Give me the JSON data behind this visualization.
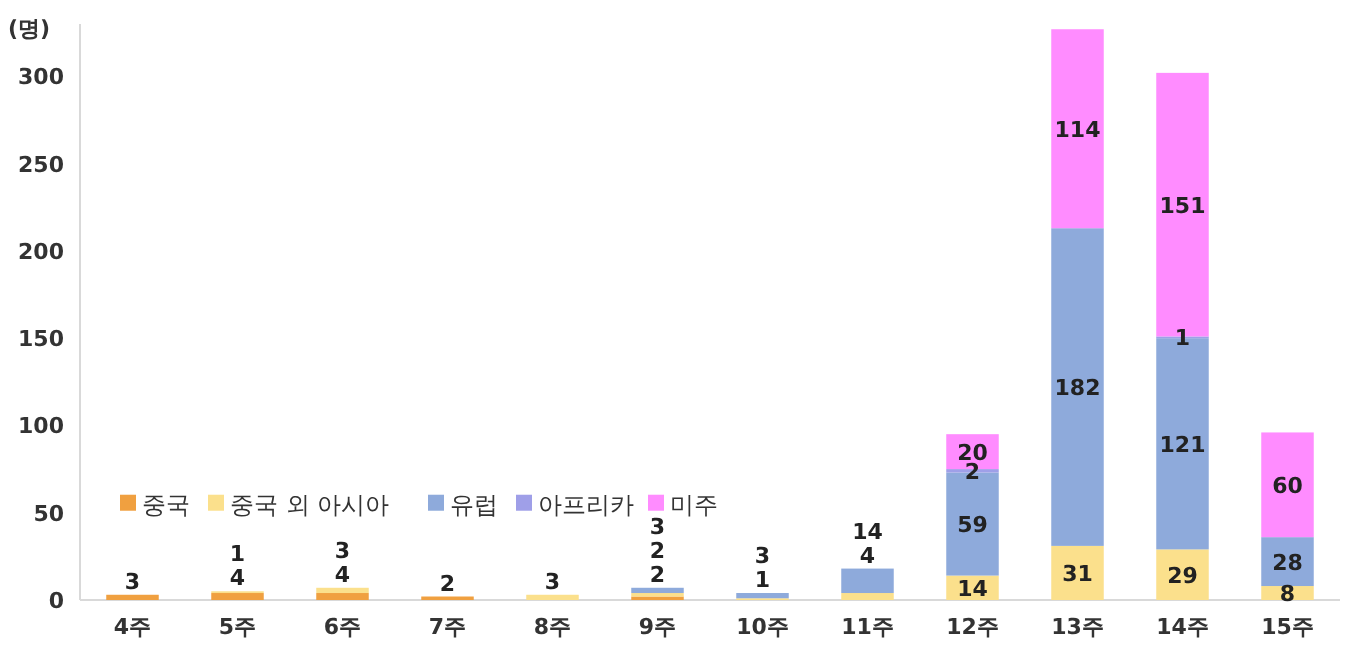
{
  "chart_data": {
    "type": "bar",
    "stacked": true,
    "ylabel": "(명)",
    "categories": [
      "4주",
      "5주",
      "6주",
      "7주",
      "8주",
      "9주",
      "10주",
      "11주",
      "12주",
      "13주",
      "14주",
      "15주"
    ],
    "ylim": [
      0,
      330
    ],
    "yticks": [
      0,
      50,
      100,
      150,
      200,
      250,
      300
    ],
    "grid": false,
    "legend": "bottom left",
    "series": [
      {
        "name": "중국",
        "color": "#f0a040",
        "values": [
          3,
          4,
          4,
          2,
          null,
          2,
          null,
          null,
          null,
          null,
          null,
          null
        ],
        "value_labels": [
          "3",
          "4",
          "4",
          "2",
          null,
          "2",
          null,
          null,
          null,
          null,
          null,
          null
        ]
      },
      {
        "name": "중국 외 아시아",
        "color": "#fbe08c",
        "values": [
          null,
          1,
          3,
          null,
          3,
          2,
          1,
          4,
          14,
          31,
          29,
          8
        ],
        "value_labels": [
          null,
          "1",
          "3",
          null,
          "3",
          "2",
          "1",
          "4",
          "14",
          "31",
          "29",
          "8"
        ]
      },
      {
        "name": "유럽",
        "color": "#8eaadb",
        "values": [
          null,
          null,
          null,
          null,
          null,
          3,
          3,
          14,
          59,
          182,
          121,
          28
        ],
        "value_labels": [
          null,
          null,
          null,
          null,
          null,
          "3",
          "3",
          "14",
          "59",
          "182",
          "121",
          "28"
        ]
      },
      {
        "name": "아프리카",
        "color": "#9f9fe8",
        "values": [
          null,
          null,
          null,
          null,
          null,
          null,
          null,
          null,
          2,
          null,
          1,
          null
        ],
        "value_labels": [
          null,
          null,
          null,
          null,
          null,
          null,
          null,
          null,
          "2",
          null,
          "1",
          null
        ]
      },
      {
        "name": "미주",
        "color": "#ff8cff",
        "values": [
          null,
          null,
          null,
          null,
          null,
          null,
          null,
          null,
          20,
          114,
          151,
          60
        ],
        "value_labels": [
          null,
          null,
          null,
          null,
          null,
          null,
          null,
          null,
          "20",
          "114",
          "151",
          "60"
        ]
      }
    ]
  }
}
